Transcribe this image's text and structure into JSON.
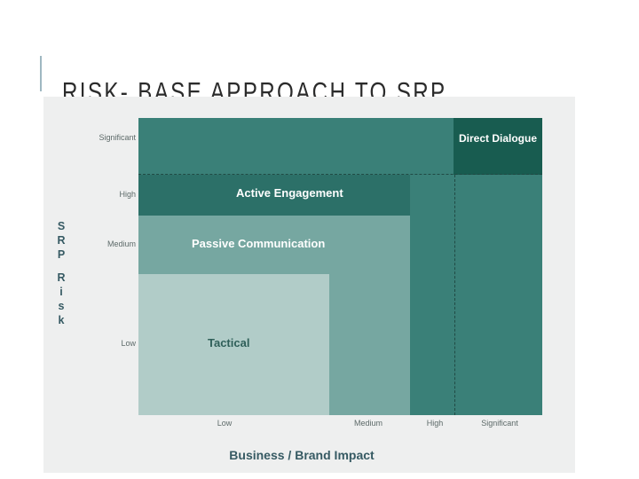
{
  "slide": {
    "title": "RISK- BASE APPROACH TO SRP"
  },
  "diagram": {
    "zones": [
      {
        "label": "Direct Dialogue",
        "x_level": "Significant",
        "y_level": "Significant",
        "color": "#185c50"
      },
      {
        "label": "Active Engagement",
        "x_level": "High",
        "y_level": "High",
        "color": "#2c7068"
      },
      {
        "label": "Passive Communication",
        "x_level": "Medium",
        "y_level": "Medium",
        "color": "#76a7a1"
      },
      {
        "label": "Tactical",
        "x_level": "Low",
        "y_level": "Low",
        "color": "#b1ccc8"
      }
    ],
    "background_zone_color": "#3a8078",
    "x_axis": {
      "title": "Business / Brand Impact",
      "ticks": [
        "Low",
        "Medium",
        "High",
        "Significant"
      ]
    },
    "y_axis": {
      "title_lines": [
        "S",
        "R",
        "P",
        "",
        "R",
        "i",
        "s",
        "k"
      ],
      "ticks": [
        "Significant",
        "High",
        "Medium",
        "Low"
      ]
    }
  }
}
